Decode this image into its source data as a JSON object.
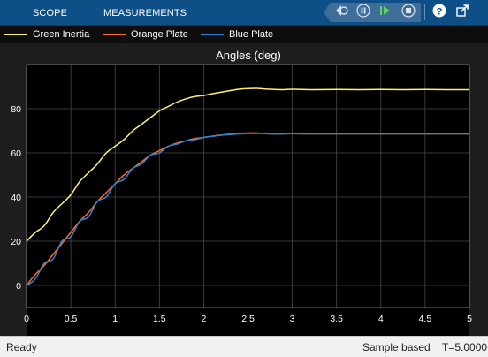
{
  "toolstrip": {
    "tabs": [
      "SCOPE",
      "MEASUREMENTS"
    ],
    "controls": [
      "step-back-icon",
      "pause-icon",
      "step-forward-icon",
      "stop-icon",
      "help-icon",
      "undock-icon"
    ]
  },
  "legend": [
    {
      "label": "Green Inertia",
      "color": "#ffef75"
    },
    {
      "label": "Orange Plate",
      "color": "#ff6b1f"
    },
    {
      "label": "Blue Plate",
      "color": "#2f86d4"
    }
  ],
  "plot": {
    "title": "Angles (deg)"
  },
  "chart_data": {
    "type": "line",
    "title": "Angles (deg)",
    "xlabel": "",
    "ylabel": "",
    "xlim": [
      0,
      5
    ],
    "ylim": [
      -10,
      97
    ],
    "xticks": [
      "0",
      "0.5",
      "1",
      "1.5",
      "2",
      "2.5",
      "3",
      "3.5",
      "4",
      "4.5",
      "5"
    ],
    "yticks": [
      "0",
      "20",
      "40",
      "60",
      "80"
    ],
    "grid": true,
    "legend_position": "top",
    "series": [
      {
        "name": "Green Inertia",
        "color": "#ffef75",
        "x": [
          0,
          0.1,
          0.2,
          0.3,
          0.4,
          0.5,
          0.6,
          0.7,
          0.8,
          0.9,
          1.0,
          1.1,
          1.2,
          1.3,
          1.4,
          1.5,
          1.6,
          1.7,
          1.8,
          1.9,
          2.0,
          2.1,
          2.2,
          2.3,
          2.4,
          2.5,
          2.6,
          2.7,
          2.8,
          2.9,
          3.0,
          3.25,
          3.5,
          3.75,
          4.0,
          4.25,
          4.5,
          4.75,
          5.0
        ],
        "y": [
          20,
          24,
          27,
          33,
          37,
          41,
          47,
          51,
          55,
          60,
          63,
          66,
          70,
          73,
          76,
          79,
          81,
          83,
          84.5,
          85.5,
          86,
          86.8,
          87.5,
          88.2,
          88.8,
          89.1,
          89.2,
          88.9,
          88.7,
          88.6,
          88.8,
          88.6,
          88.7,
          88.6,
          88.7,
          88.6,
          88.7,
          88.6,
          88.6
        ]
      },
      {
        "name": "Orange Plate",
        "color": "#ff6b1f",
        "x": [
          0,
          0.1,
          0.2,
          0.3,
          0.4,
          0.5,
          0.6,
          0.7,
          0.8,
          0.9,
          1.0,
          1.1,
          1.2,
          1.3,
          1.4,
          1.5,
          1.6,
          1.7,
          1.8,
          1.9,
          2.0,
          2.1,
          2.2,
          2.3,
          2.4,
          2.5,
          2.6,
          2.7,
          2.8,
          2.9,
          3.0,
          3.25,
          3.5,
          3.75,
          4.0,
          4.25,
          4.5,
          4.75,
          5.0
        ],
        "y": [
          0,
          5,
          9,
          14,
          19,
          24,
          29,
          33,
          38,
          42,
          46,
          50,
          53,
          56,
          59,
          61,
          63,
          64.5,
          65.5,
          66.5,
          67,
          67.6,
          68.1,
          68.5,
          68.8,
          69,
          69,
          68.8,
          68.6,
          68.6,
          68.7,
          68.6,
          68.6,
          68.6,
          68.6,
          68.6,
          68.6,
          68.6,
          68.6
        ]
      },
      {
        "name": "Blue Plate",
        "color": "#2f86d4",
        "x": [
          0,
          0.1,
          0.2,
          0.3,
          0.4,
          0.5,
          0.6,
          0.7,
          0.8,
          0.9,
          1.0,
          1.1,
          1.2,
          1.3,
          1.4,
          1.5,
          1.6,
          1.7,
          1.8,
          1.9,
          2.0,
          2.1,
          2.2,
          2.3,
          2.4,
          2.5,
          2.6,
          2.7,
          2.8,
          2.9,
          3.0,
          3.25,
          3.5,
          3.75,
          4.0,
          4.25,
          4.5,
          4.75,
          5.0
        ],
        "y": [
          0,
          3,
          10,
          12,
          20,
          22,
          29,
          31,
          38,
          40,
          46,
          48,
          53,
          55,
          59,
          60,
          63,
          64,
          65.5,
          66,
          67,
          67.5,
          68,
          68.3,
          68.6,
          68.8,
          68.8,
          68.7,
          68.5,
          68.6,
          68.7,
          68.6,
          68.6,
          68.6,
          68.6,
          68.6,
          68.6,
          68.6,
          68.6
        ]
      }
    ]
  },
  "status": {
    "left": "Ready",
    "mode": "Sample based",
    "time": "T=5.0000"
  }
}
